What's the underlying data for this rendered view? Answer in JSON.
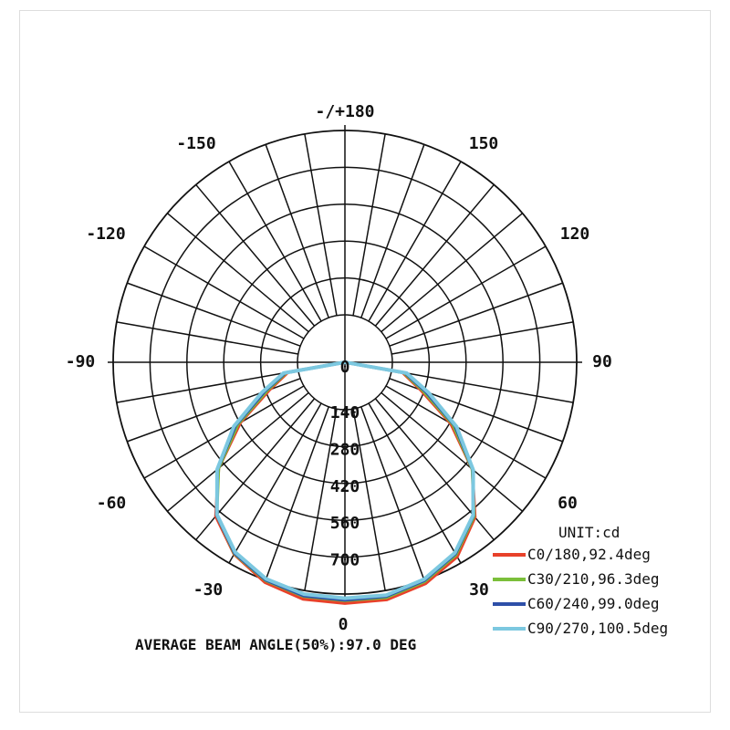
{
  "chart_data": {
    "type": "polar",
    "unit_label": "UNIT:cd",
    "radial_ticks": [
      0,
      140,
      280,
      420,
      560,
      700
    ],
    "radial_max": 700,
    "radial_tick_labels": [
      "0",
      "140",
      "280",
      "420",
      "560",
      "700"
    ],
    "angle_labels": [
      "-/+180",
      "150",
      "-150",
      "120",
      "-120",
      "90",
      "-90",
      "60",
      "-60",
      "30",
      "-30",
      "0"
    ],
    "footer": "AVERAGE BEAM ANGLE(50%):97.0 DEG",
    "series": [
      {
        "name": "C0/180,92.4deg",
        "color": "#e8412a",
        "points": [
          [
            0,
            700
          ],
          [
            10,
            700
          ],
          [
            20,
            680
          ],
          [
            30,
            640
          ],
          [
            40,
            560
          ],
          [
            50,
            430
          ],
          [
            60,
            270
          ],
          [
            70,
            120
          ],
          [
            80,
            40
          ],
          [
            90,
            5
          ],
          [
            -10,
            698
          ],
          [
            -20,
            675
          ],
          [
            -30,
            630
          ],
          [
            -40,
            555
          ],
          [
            -50,
            425
          ],
          [
            -60,
            265
          ],
          [
            -70,
            118
          ],
          [
            -80,
            38
          ],
          [
            -90,
            5
          ]
        ]
      },
      {
        "name": "C30/210,96.3deg",
        "color": "#7bbf3a",
        "points": [
          [
            0,
            690
          ],
          [
            10,
            692
          ],
          [
            20,
            672
          ],
          [
            30,
            632
          ],
          [
            40,
            555
          ],
          [
            50,
            430
          ],
          [
            60,
            280
          ],
          [
            70,
            130
          ],
          [
            80,
            45
          ],
          [
            90,
            5
          ],
          [
            -10,
            688
          ],
          [
            -20,
            668
          ],
          [
            -30,
            628
          ],
          [
            -40,
            550
          ],
          [
            -50,
            425
          ],
          [
            -60,
            275
          ],
          [
            -70,
            128
          ],
          [
            -80,
            44
          ],
          [
            -90,
            5
          ]
        ]
      },
      {
        "name": "C60/240,99.0deg",
        "color": "#2e4fa8",
        "points": [
          [
            0,
            688
          ],
          [
            10,
            688
          ],
          [
            20,
            668
          ],
          [
            30,
            628
          ],
          [
            40,
            552
          ],
          [
            50,
            432
          ],
          [
            60,
            288
          ],
          [
            70,
            140
          ],
          [
            80,
            50
          ],
          [
            90,
            5
          ],
          [
            -10,
            686
          ],
          [
            -20,
            666
          ],
          [
            -30,
            626
          ],
          [
            -40,
            550
          ],
          [
            -50,
            430
          ],
          [
            -60,
            285
          ],
          [
            -70,
            138
          ],
          [
            -80,
            48
          ],
          [
            -90,
            5
          ]
        ]
      },
      {
        "name": "C90/270,100.5deg",
        "color": "#7cc8e0",
        "points": [
          [
            0,
            682
          ],
          [
            10,
            684
          ],
          [
            20,
            664
          ],
          [
            30,
            624
          ],
          [
            40,
            550
          ],
          [
            50,
            434
          ],
          [
            60,
            295
          ],
          [
            70,
            150
          ],
          [
            80,
            55
          ],
          [
            90,
            5
          ],
          [
            -10,
            680
          ],
          [
            -20,
            662
          ],
          [
            -30,
            622
          ],
          [
            -40,
            548
          ],
          [
            -50,
            432
          ],
          [
            -60,
            292
          ],
          [
            -70,
            148
          ],
          [
            -80,
            54
          ],
          [
            -90,
            5
          ]
        ]
      }
    ]
  }
}
